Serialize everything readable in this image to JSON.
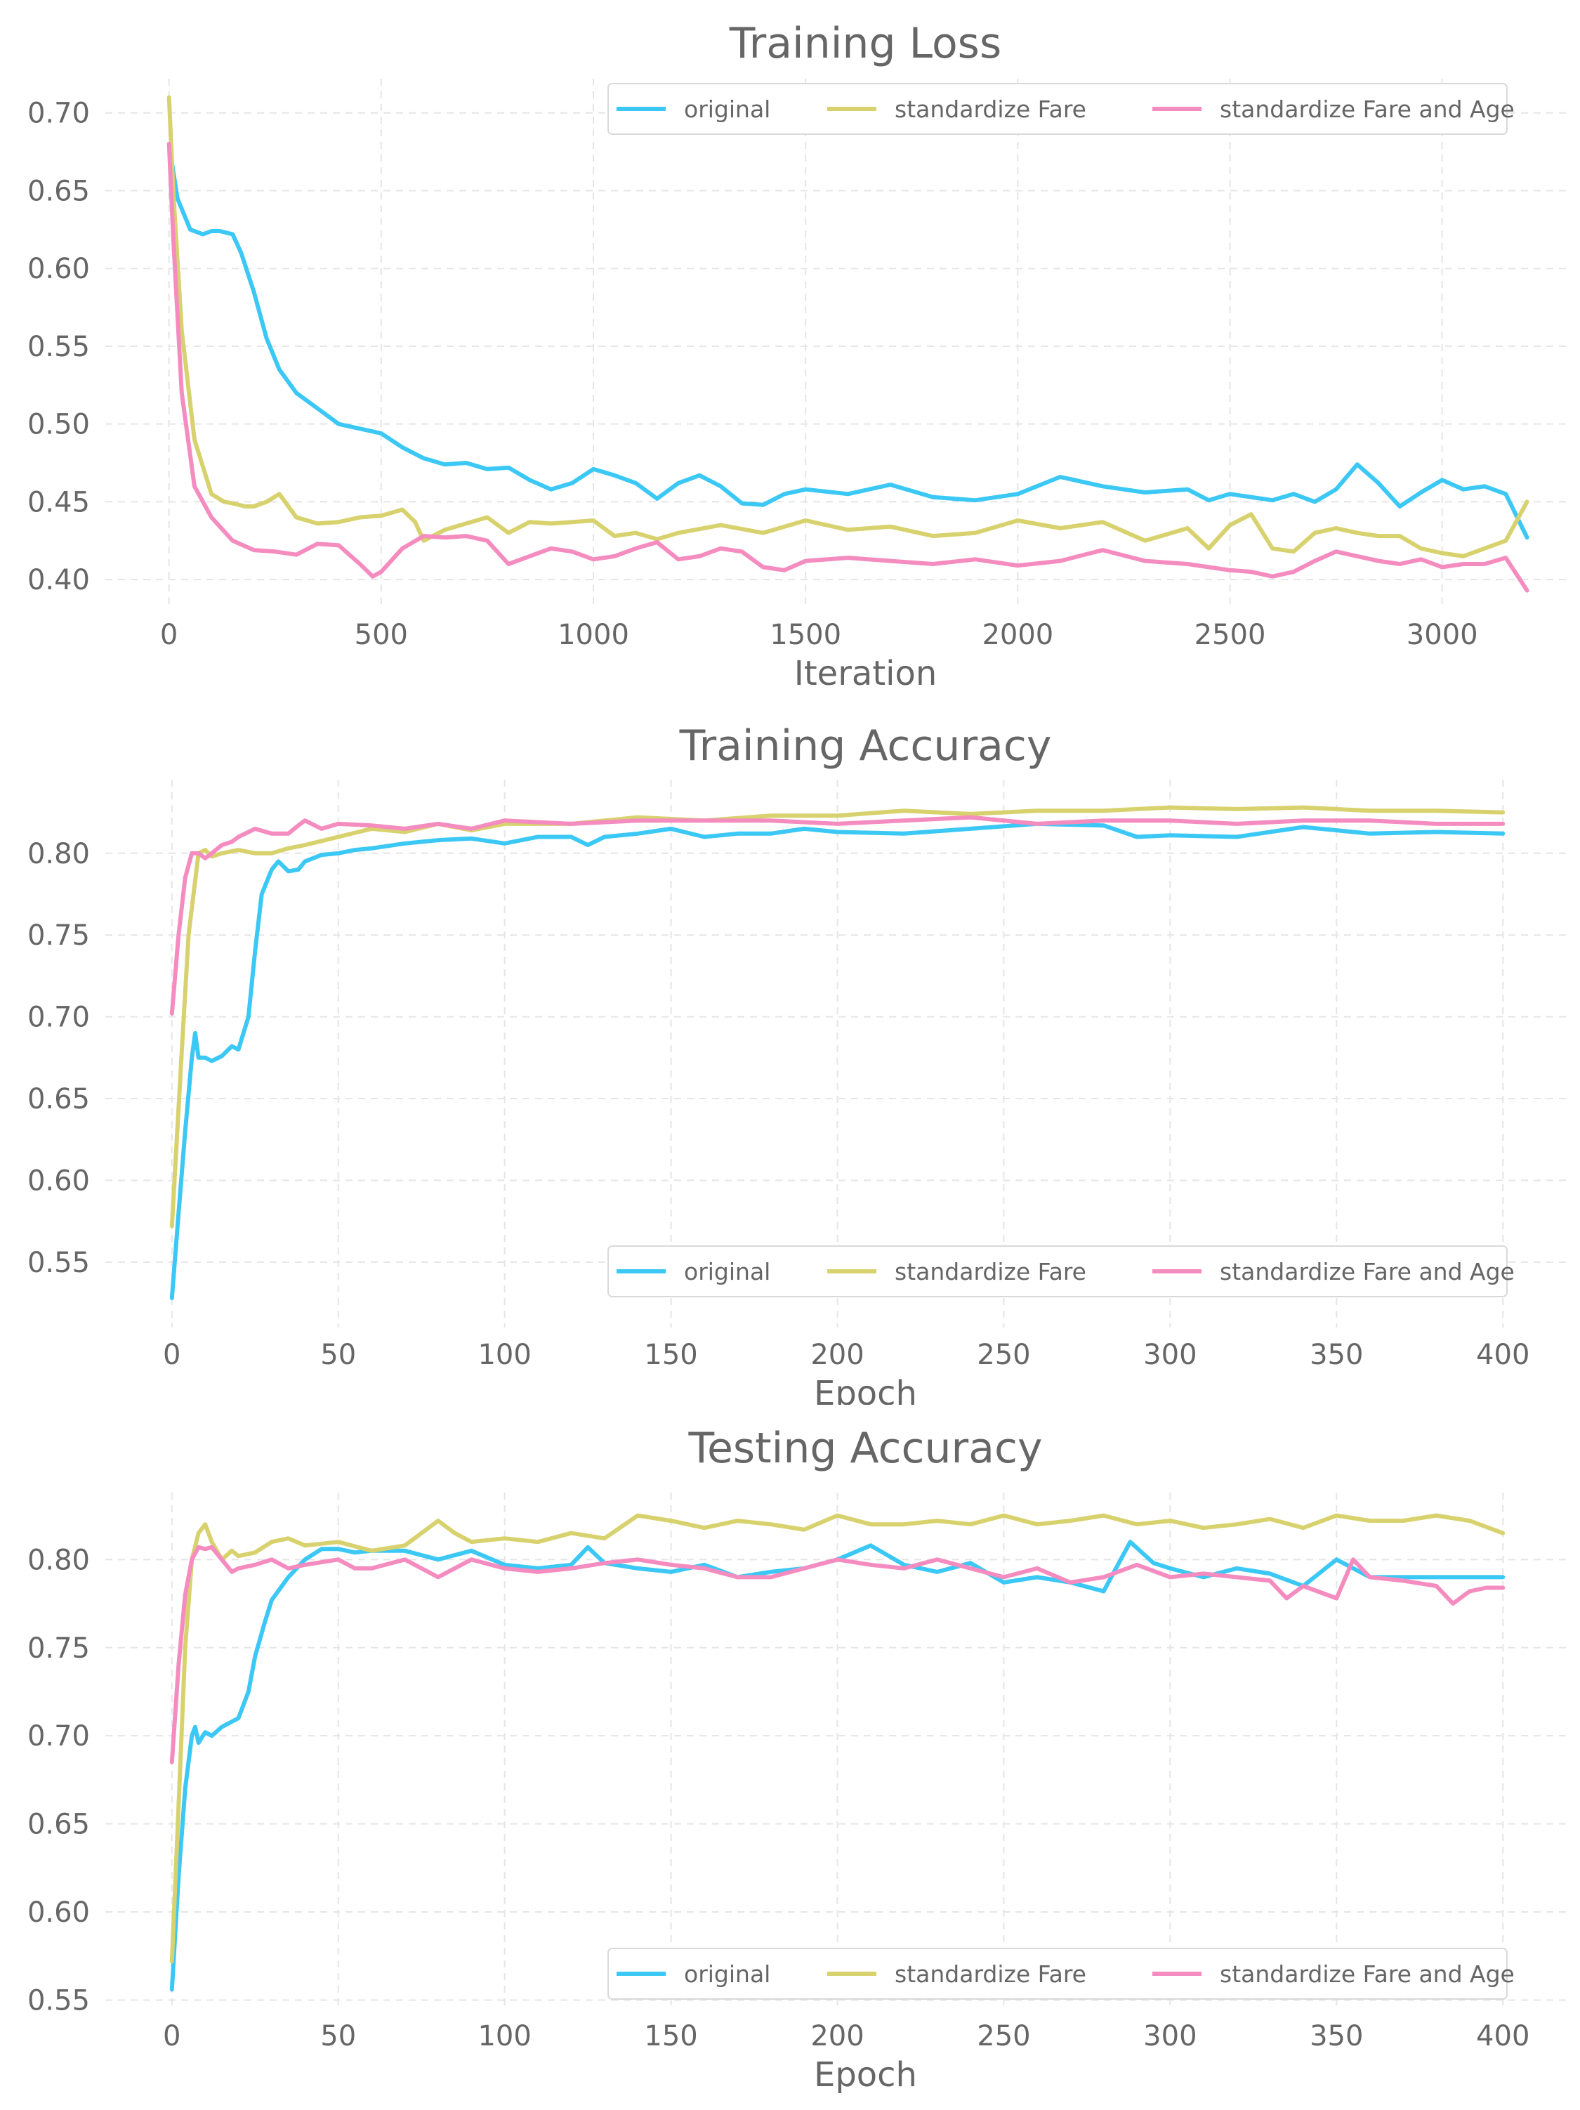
{
  "colors": {
    "original": "#3cc8f5",
    "standardize_fare": "#d8d26e",
    "standardize_fare_age": "#f58cc0",
    "text": "#666666",
    "grid": "#e5e5e5"
  },
  "chart_data": [
    {
      "type": "line",
      "title": "Training Loss",
      "xlabel": "Iteration",
      "ylabel": "",
      "xlim": [
        -150,
        3300
      ],
      "ylim": [
        0.382,
        0.722
      ],
      "xticks": [
        0,
        500,
        1000,
        1500,
        2000,
        2500,
        3000
      ],
      "xtick_labels": [
        "0",
        "500",
        "1000",
        "1500",
        "2000",
        "2500",
        "3000"
      ],
      "yticks": [
        0.4,
        0.45,
        0.5,
        0.55,
        0.6,
        0.65,
        0.7
      ],
      "ytick_labels": [
        "0.40",
        "0.45",
        "0.50",
        "0.55",
        "0.60",
        "0.65",
        "0.70"
      ],
      "grid": true,
      "legend_position": "top-right",
      "series": [
        {
          "name": "original",
          "x": [
            0,
            20,
            50,
            80,
            100,
            120,
            150,
            170,
            200,
            230,
            260,
            300,
            350,
            400,
            450,
            500,
            550,
            600,
            650,
            700,
            750,
            800,
            850,
            900,
            950,
            1000,
            1050,
            1100,
            1150,
            1200,
            1250,
            1300,
            1350,
            1400,
            1450,
            1500,
            1600,
            1700,
            1800,
            1900,
            2000,
            2100,
            2200,
            2300,
            2400,
            2450,
            2500,
            2600,
            2650,
            2700,
            2750,
            2800,
            2850,
            2900,
            2950,
            3000,
            3050,
            3100,
            3150,
            3200
          ],
          "y": [
            0.68,
            0.645,
            0.625,
            0.622,
            0.624,
            0.624,
            0.622,
            0.61,
            0.585,
            0.555,
            0.535,
            0.52,
            0.51,
            0.5,
            0.497,
            0.494,
            0.485,
            0.478,
            0.474,
            0.475,
            0.471,
            0.472,
            0.464,
            0.458,
            0.462,
            0.471,
            0.467,
            0.462,
            0.452,
            0.462,
            0.467,
            0.46,
            0.449,
            0.448,
            0.455,
            0.458,
            0.455,
            0.461,
            0.453,
            0.451,
            0.455,
            0.466,
            0.46,
            0.456,
            0.458,
            0.451,
            0.455,
            0.451,
            0.455,
            0.45,
            0.458,
            0.474,
            0.462,
            0.447,
            0.456,
            0.464,
            0.458,
            0.46,
            0.455,
            0.427
          ]
        },
        {
          "name": "standardize Fare",
          "x": [
            0,
            10,
            30,
            60,
            100,
            130,
            150,
            180,
            200,
            230,
            260,
            300,
            350,
            400,
            450,
            500,
            550,
            580,
            600,
            650,
            700,
            750,
            800,
            850,
            900,
            950,
            1000,
            1050,
            1100,
            1150,
            1200,
            1300,
            1400,
            1500,
            1600,
            1700,
            1800,
            1900,
            2000,
            2100,
            2200,
            2300,
            2400,
            2450,
            2500,
            2550,
            2600,
            2650,
            2700,
            2750,
            2800,
            2850,
            2900,
            2950,
            3000,
            3050,
            3100,
            3150,
            3200
          ],
          "y": [
            0.71,
            0.65,
            0.56,
            0.49,
            0.455,
            0.45,
            0.449,
            0.447,
            0.447,
            0.45,
            0.455,
            0.44,
            0.436,
            0.437,
            0.44,
            0.441,
            0.445,
            0.437,
            0.425,
            0.432,
            0.436,
            0.44,
            0.43,
            0.437,
            0.436,
            0.437,
            0.438,
            0.428,
            0.43,
            0.426,
            0.43,
            0.435,
            0.43,
            0.438,
            0.432,
            0.434,
            0.428,
            0.43,
            0.438,
            0.433,
            0.437,
            0.425,
            0.433,
            0.42,
            0.435,
            0.442,
            0.42,
            0.418,
            0.43,
            0.433,
            0.43,
            0.428,
            0.428,
            0.42,
            0.417,
            0.415,
            0.42,
            0.425,
            0.45
          ]
        },
        {
          "name": "standardize Fare and Age",
          "x": [
            0,
            10,
            30,
            60,
            100,
            150,
            200,
            250,
            300,
            350,
            400,
            450,
            480,
            500,
            550,
            600,
            650,
            700,
            750,
            800,
            850,
            900,
            950,
            1000,
            1050,
            1100,
            1150,
            1200,
            1250,
            1300,
            1350,
            1400,
            1450,
            1500,
            1600,
            1700,
            1800,
            1900,
            2000,
            2100,
            2200,
            2300,
            2400,
            2500,
            2550,
            2600,
            2650,
            2700,
            2750,
            2800,
            2850,
            2900,
            2950,
            3000,
            3050,
            3100,
            3150,
            3200
          ],
          "y": [
            0.68,
            0.62,
            0.52,
            0.46,
            0.44,
            0.425,
            0.419,
            0.418,
            0.416,
            0.423,
            0.422,
            0.41,
            0.402,
            0.405,
            0.42,
            0.428,
            0.427,
            0.428,
            0.425,
            0.41,
            0.415,
            0.42,
            0.418,
            0.413,
            0.415,
            0.42,
            0.424,
            0.413,
            0.415,
            0.42,
            0.418,
            0.408,
            0.406,
            0.412,
            0.414,
            0.412,
            0.41,
            0.413,
            0.409,
            0.412,
            0.419,
            0.412,
            0.41,
            0.406,
            0.405,
            0.402,
            0.405,
            0.412,
            0.418,
            0.415,
            0.412,
            0.41,
            0.413,
            0.408,
            0.41,
            0.41,
            0.414,
            0.393
          ]
        }
      ]
    },
    {
      "type": "line",
      "title": "Training Accuracy",
      "xlabel": "Epoch",
      "ylabel": "",
      "xlim": [
        -20,
        420
      ],
      "ylim": [
        0.51,
        0.845
      ],
      "xticks": [
        0,
        50,
        100,
        150,
        200,
        250,
        300,
        350,
        400
      ],
      "xtick_labels": [
        "0",
        "50",
        "100",
        "150",
        "200",
        "250",
        "300",
        "350",
        "400"
      ],
      "yticks": [
        0.55,
        0.6,
        0.65,
        0.7,
        0.75,
        0.8
      ],
      "ytick_labels": [
        "0.55",
        "0.60",
        "0.65",
        "0.70",
        "0.75",
        "0.80"
      ],
      "grid": true,
      "legend_position": "lower-right",
      "series": [
        {
          "name": "original",
          "x": [
            0,
            2,
            4,
            6,
            7,
            8,
            10,
            12,
            15,
            18,
            20,
            23,
            25,
            27,
            30,
            32,
            35,
            38,
            40,
            45,
            50,
            55,
            60,
            70,
            80,
            90,
            100,
            110,
            120,
            125,
            130,
            140,
            150,
            160,
            170,
            180,
            190,
            200,
            220,
            240,
            260,
            280,
            290,
            300,
            320,
            340,
            360,
            380,
            400
          ],
          "y": [
            0.528,
            0.58,
            0.63,
            0.675,
            0.69,
            0.675,
            0.675,
            0.673,
            0.676,
            0.682,
            0.68,
            0.7,
            0.74,
            0.775,
            0.79,
            0.795,
            0.789,
            0.79,
            0.795,
            0.799,
            0.8,
            0.802,
            0.803,
            0.806,
            0.808,
            0.809,
            0.806,
            0.81,
            0.81,
            0.805,
            0.81,
            0.812,
            0.815,
            0.81,
            0.812,
            0.812,
            0.815,
            0.813,
            0.812,
            0.815,
            0.818,
            0.817,
            0.81,
            0.811,
            0.81,
            0.816,
            0.812,
            0.813,
            0.812
          ]
        },
        {
          "name": "standardize Fare",
          "x": [
            0,
            3,
            5,
            8,
            10,
            12,
            15,
            20,
            25,
            30,
            35,
            40,
            50,
            60,
            70,
            80,
            90,
            100,
            110,
            120,
            140,
            160,
            180,
            200,
            220,
            240,
            260,
            280,
            300,
            320,
            340,
            360,
            380,
            400
          ],
          "y": [
            0.572,
            0.68,
            0.75,
            0.8,
            0.802,
            0.798,
            0.8,
            0.802,
            0.8,
            0.8,
            0.803,
            0.805,
            0.81,
            0.815,
            0.813,
            0.818,
            0.814,
            0.818,
            0.818,
            0.818,
            0.822,
            0.82,
            0.823,
            0.823,
            0.826,
            0.824,
            0.826,
            0.826,
            0.828,
            0.827,
            0.828,
            0.826,
            0.826,
            0.825
          ]
        },
        {
          "name": "standardize Fare and Age",
          "x": [
            0,
            2,
            4,
            6,
            8,
            10,
            12,
            15,
            18,
            20,
            25,
            30,
            35,
            38,
            40,
            45,
            50,
            60,
            70,
            80,
            90,
            100,
            120,
            140,
            160,
            180,
            200,
            220,
            240,
            260,
            280,
            300,
            320,
            340,
            360,
            380,
            400
          ],
          "y": [
            0.702,
            0.75,
            0.785,
            0.8,
            0.8,
            0.797,
            0.8,
            0.805,
            0.807,
            0.81,
            0.815,
            0.812,
            0.812,
            0.817,
            0.82,
            0.815,
            0.818,
            0.817,
            0.815,
            0.818,
            0.815,
            0.82,
            0.818,
            0.82,
            0.82,
            0.82,
            0.818,
            0.82,
            0.822,
            0.818,
            0.82,
            0.82,
            0.818,
            0.82,
            0.82,
            0.818,
            0.818
          ]
        }
      ]
    },
    {
      "type": "line",
      "title": "Testing Accuracy",
      "xlabel": "Epoch",
      "ylabel": "",
      "xlim": [
        -20,
        420
      ],
      "ylim": [
        0.545,
        0.838
      ],
      "xticks": [
        0,
        50,
        100,
        150,
        200,
        250,
        300,
        350,
        400
      ],
      "xtick_labels": [
        "0",
        "50",
        "100",
        "150",
        "200",
        "250",
        "300",
        "350",
        "400"
      ],
      "yticks": [
        0.55,
        0.6,
        0.65,
        0.7,
        0.75,
        0.8
      ],
      "ytick_labels": [
        "0.55",
        "0.60",
        "0.65",
        "0.70",
        "0.75",
        "0.80"
      ],
      "grid": true,
      "legend_position": "lower-right",
      "series": [
        {
          "name": "original",
          "x": [
            0,
            2,
            4,
            6,
            7,
            8,
            10,
            12,
            15,
            18,
            20,
            23,
            25,
            28,
            30,
            35,
            40,
            45,
            50,
            55,
            60,
            70,
            80,
            90,
            100,
            110,
            120,
            125,
            130,
            140,
            150,
            160,
            170,
            180,
            190,
            200,
            210,
            220,
            230,
            240,
            250,
            260,
            270,
            280,
            288,
            295,
            300,
            310,
            320,
            330,
            340,
            350,
            360,
            380,
            400
          ],
          "y": [
            0.556,
            0.62,
            0.67,
            0.7,
            0.705,
            0.696,
            0.702,
            0.7,
            0.705,
            0.708,
            0.71,
            0.725,
            0.745,
            0.765,
            0.777,
            0.79,
            0.8,
            0.806,
            0.806,
            0.804,
            0.805,
            0.805,
            0.8,
            0.805,
            0.797,
            0.795,
            0.797,
            0.807,
            0.798,
            0.795,
            0.793,
            0.797,
            0.79,
            0.793,
            0.795,
            0.8,
            0.808,
            0.797,
            0.793,
            0.798,
            0.787,
            0.79,
            0.787,
            0.782,
            0.81,
            0.798,
            0.795,
            0.79,
            0.795,
            0.792,
            0.785,
            0.8,
            0.79,
            0.79,
            0.79
          ]
        },
        {
          "name": "standardize Fare",
          "x": [
            0,
            2,
            4,
            6,
            8,
            10,
            12,
            15,
            18,
            20,
            25,
            30,
            35,
            40,
            50,
            60,
            70,
            80,
            85,
            90,
            100,
            110,
            120,
            130,
            140,
            150,
            160,
            170,
            180,
            190,
            200,
            210,
            220,
            230,
            240,
            250,
            260,
            270,
            280,
            290,
            300,
            310,
            320,
            330,
            340,
            350,
            360,
            370,
            380,
            390,
            400
          ],
          "y": [
            0.572,
            0.66,
            0.75,
            0.8,
            0.815,
            0.82,
            0.81,
            0.8,
            0.805,
            0.802,
            0.804,
            0.81,
            0.812,
            0.808,
            0.81,
            0.805,
            0.808,
            0.822,
            0.815,
            0.81,
            0.812,
            0.81,
            0.815,
            0.812,
            0.825,
            0.822,
            0.818,
            0.822,
            0.82,
            0.817,
            0.825,
            0.82,
            0.82,
            0.822,
            0.82,
            0.825,
            0.82,
            0.822,
            0.825,
            0.82,
            0.822,
            0.818,
            0.82,
            0.823,
            0.818,
            0.825,
            0.822,
            0.822,
            0.825,
            0.822,
            0.815
          ]
        },
        {
          "name": "standardize Fare and Age",
          "x": [
            0,
            2,
            4,
            6,
            8,
            10,
            12,
            15,
            18,
            20,
            25,
            30,
            35,
            40,
            50,
            55,
            60,
            70,
            80,
            90,
            100,
            110,
            120,
            130,
            140,
            150,
            160,
            170,
            180,
            190,
            200,
            210,
            220,
            230,
            240,
            250,
            260,
            270,
            280,
            290,
            300,
            310,
            320,
            330,
            335,
            340,
            350,
            355,
            360,
            370,
            380,
            385,
            390,
            395,
            400
          ],
          "y": [
            0.685,
            0.74,
            0.78,
            0.8,
            0.807,
            0.806,
            0.807,
            0.8,
            0.793,
            0.795,
            0.797,
            0.8,
            0.795,
            0.797,
            0.8,
            0.795,
            0.795,
            0.8,
            0.79,
            0.8,
            0.795,
            0.793,
            0.795,
            0.798,
            0.8,
            0.797,
            0.795,
            0.79,
            0.79,
            0.795,
            0.8,
            0.797,
            0.795,
            0.8,
            0.795,
            0.79,
            0.795,
            0.787,
            0.79,
            0.797,
            0.79,
            0.792,
            0.79,
            0.788,
            0.778,
            0.785,
            0.778,
            0.8,
            0.79,
            0.788,
            0.785,
            0.775,
            0.782,
            0.784,
            0.784
          ]
        }
      ]
    }
  ]
}
